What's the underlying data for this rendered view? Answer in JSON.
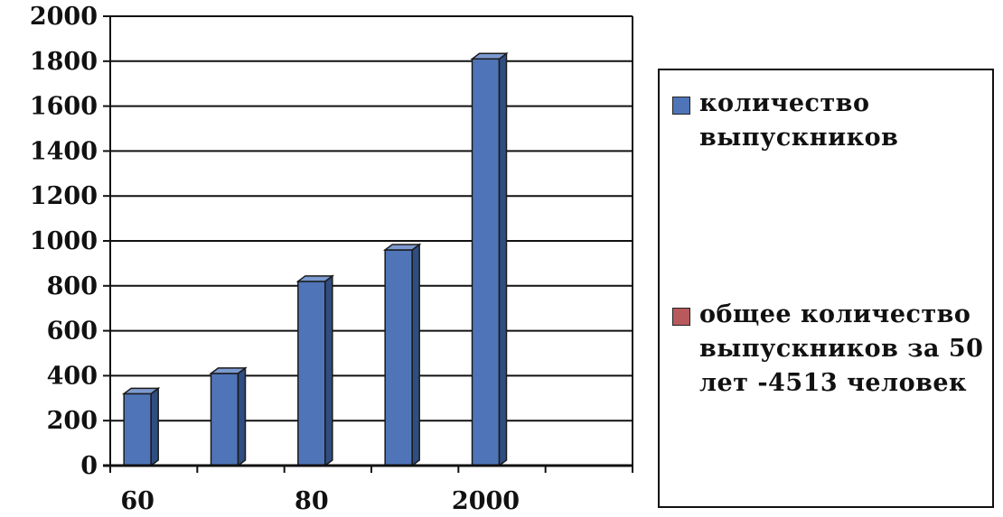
{
  "chart_data": {
    "type": "bar",
    "title": "",
    "xlabel": "",
    "ylabel": "",
    "ylim": [
      0,
      2000
    ],
    "yticks": [
      0,
      200,
      400,
      600,
      800,
      1000,
      1200,
      1400,
      1600,
      1800,
      2000
    ],
    "categories": [
      "",
      "",
      "",
      "",
      "",
      ""
    ],
    "x_tick_labels": [
      "60",
      "",
      "80",
      "",
      "2000",
      ""
    ],
    "grid": true,
    "legend_position": "right",
    "series": [
      {
        "name": "количество выпускников",
        "color": "#4f75b8",
        "values": [
          320,
          410,
          820,
          960,
          1810,
          null
        ]
      },
      {
        "name": "общее количество выпускников за 50 лет -4513 человек",
        "color": "#b85a5c",
        "values": [
          null,
          null,
          null,
          null,
          null,
          null
        ]
      }
    ]
  }
}
